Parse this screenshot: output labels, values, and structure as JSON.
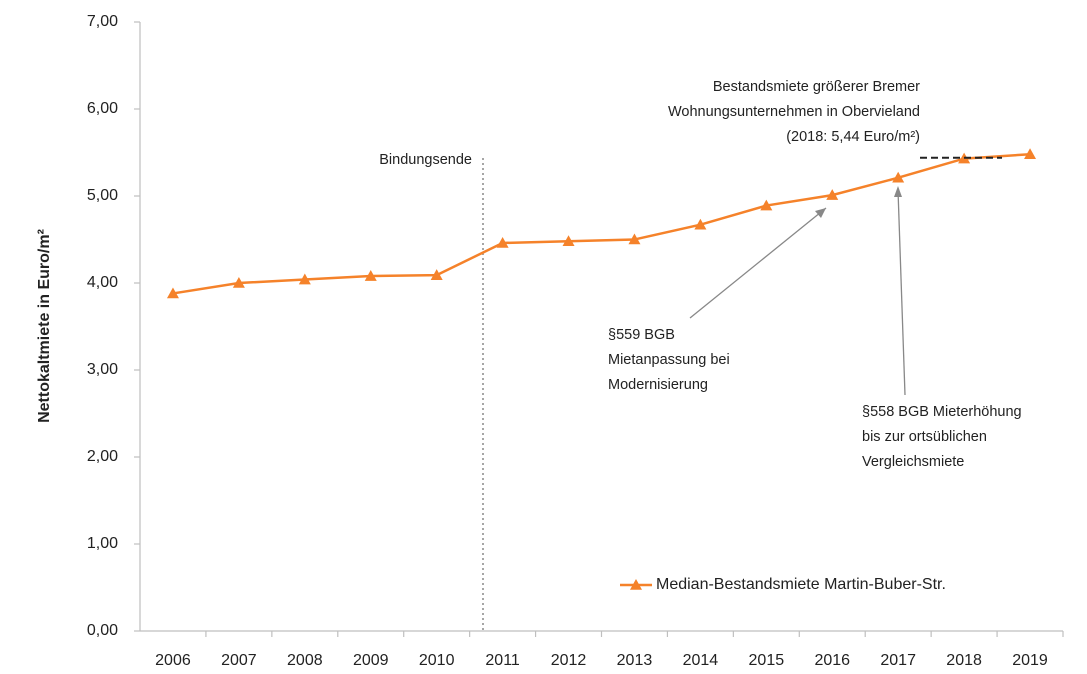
{
  "chart_data": {
    "type": "line",
    "y_label": "Nettokaltmiete in Euro/m²",
    "categories": [
      "2006",
      "2007",
      "2008",
      "2009",
      "2010",
      "2011",
      "2012",
      "2013",
      "2014",
      "2015",
      "2016",
      "2017",
      "2018",
      "2019"
    ],
    "series": [
      {
        "name": "Median-Bestandsmiete Martin-Buber-Str.",
        "color": "#f5822a",
        "marker": "triangle",
        "values": [
          3.88,
          4.0,
          4.04,
          4.08,
          4.09,
          4.46,
          4.48,
          4.5,
          4.67,
          4.89,
          5.01,
          5.21,
          5.43,
          5.48
        ]
      }
    ],
    "ylim": [
      0,
      7
    ],
    "yticks": [
      {
        "value": 0,
        "label": "0,00"
      },
      {
        "value": 1,
        "label": "1,00"
      },
      {
        "value": 2,
        "label": "2,00"
      },
      {
        "value": 3,
        "label": "3,00"
      },
      {
        "value": 4,
        "label": "4,00"
      },
      {
        "value": 5,
        "label": "5,00"
      },
      {
        "value": 6,
        "label": "6,00"
      },
      {
        "value": 7,
        "label": "7,00"
      }
    ],
    "grid": false,
    "legend": "lower right",
    "annotations": [
      {
        "lines": [
          "Bindungsende"
        ]
      },
      {
        "lines": [
          "Bestandsmiete größerer Bremer",
          "Wohnungsunternehmen  in Obervieland",
          "(2018: 5,44 Euro/m²)"
        ],
        "value": 5.44
      },
      {
        "lines": [
          "§559 BGB",
          "Mietanpassung bei",
          "Modernisierung"
        ]
      },
      {
        "lines": [
          "§558 BGB Mieterhöhung",
          "bis zur ortsüblichen",
          "Vergleichsmiete"
        ]
      }
    ]
  }
}
